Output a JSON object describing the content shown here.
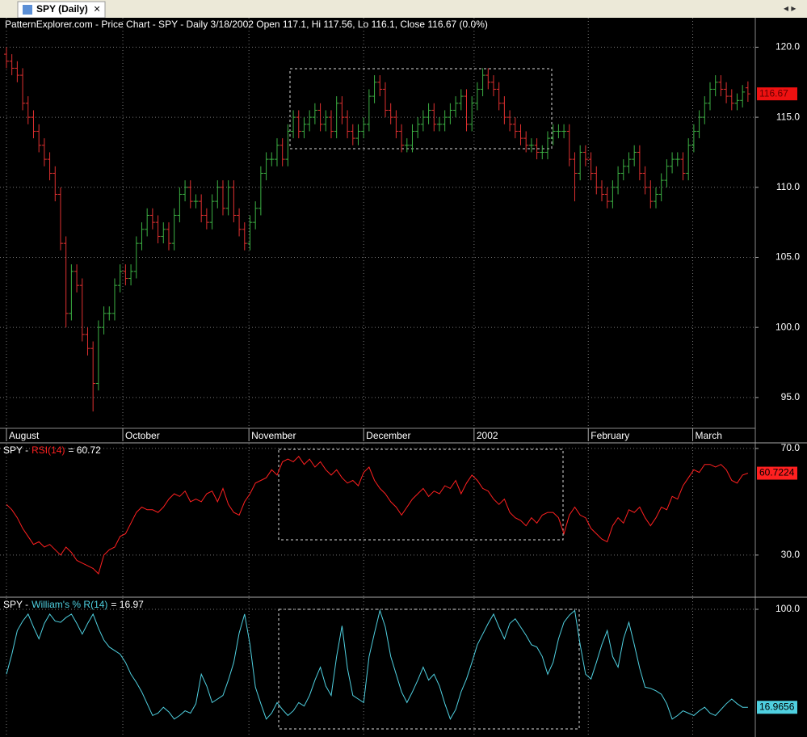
{
  "tab": {
    "title": "SPY (Daily)",
    "close": "×",
    "nav": "◂ ▸"
  },
  "chart_data": [
    {
      "type": "ohlc",
      "title": "PatternExplorer.com - Price Chart - SPY - Daily 3/18/2002 Open 117.1, Hi 117.56, Lo 116.1, Close 116.67 (0.0%)",
      "open": [
        119.5,
        119,
        118.5,
        118,
        116,
        115,
        114,
        113,
        112,
        111,
        109.5,
        106,
        101,
        104,
        103,
        99.5,
        98.5,
        96,
        100,
        101,
        101,
        103,
        104,
        103.5,
        104,
        106,
        107,
        108,
        107.5,
        106.5,
        107,
        106,
        108,
        109.5,
        110,
        109,
        109,
        108,
        107.5,
        109,
        110,
        108.5,
        110,
        108,
        107,
        106,
        107.5,
        108.5,
        111,
        112,
        112,
        113,
        112,
        114,
        115,
        114,
        114.5,
        115,
        115.5,
        114.5,
        115,
        114,
        116,
        115,
        114,
        113.5,
        114,
        114.5,
        116.5,
        117.5,
        117,
        115.5,
        115,
        114,
        113,
        113,
        114,
        114.5,
        115,
        115.5,
        114.5,
        114.5,
        115,
        115.5,
        116,
        116.5,
        114.5,
        116,
        117,
        118,
        117.5,
        117,
        116,
        115,
        114.5,
        114,
        113.5,
        113,
        113,
        112.5,
        112.5,
        113.5,
        114,
        114,
        114,
        112,
        111,
        112.5,
        112,
        111,
        110,
        109.5,
        109,
        110,
        111,
        111.5,
        112,
        112.5,
        111,
        110,
        109,
        109.5,
        110.5,
        111.5,
        112,
        112,
        111,
        113,
        114,
        115,
        116,
        117,
        117.5,
        117,
        116.5,
        116,
        116.2,
        117.1
      ],
      "high": [
        120,
        119.5,
        119,
        118.5,
        116.5,
        115.5,
        114.5,
        113.5,
        112.5,
        111.5,
        110,
        106.5,
        104.5,
        104.5,
        103.5,
        100,
        99,
        100.5,
        101.5,
        101.5,
        103.5,
        104.5,
        104.5,
        104.5,
        106.5,
        107.5,
        108.5,
        108.5,
        108,
        107.5,
        107.5,
        108.5,
        110,
        110.5,
        110.5,
        109.5,
        109.5,
        108.5,
        109.5,
        110.5,
        110.5,
        110.5,
        110.5,
        108.5,
        107.5,
        108,
        109,
        111.5,
        112.5,
        112.5,
        113.5,
        113.5,
        114.5,
        115.5,
        115.5,
        115,
        115.5,
        116,
        116,
        115.5,
        115.5,
        116.5,
        116.5,
        115.5,
        114.5,
        114.5,
        115,
        117,
        118,
        118,
        117.5,
        116,
        115.5,
        114.5,
        113.5,
        114.5,
        115,
        115.5,
        116,
        116,
        115,
        115.5,
        116,
        116.5,
        117,
        117,
        116.5,
        117.5,
        118.5,
        118.5,
        118,
        117.5,
        116.5,
        115.5,
        115,
        114.5,
        114,
        113.5,
        113.5,
        113,
        114,
        114.5,
        114.5,
        114.5,
        114.5,
        112.5,
        113,
        113,
        112.5,
        111.5,
        110.5,
        110,
        110.5,
        111.5,
        112,
        112.5,
        113,
        113,
        111.5,
        110.5,
        110,
        111,
        112,
        112.5,
        112.5,
        112.5,
        113.5,
        114.5,
        115.5,
        116.5,
        117.5,
        118,
        118,
        117.5,
        117,
        116.7,
        117.3,
        117.56
      ],
      "low": [
        118.5,
        118,
        117.5,
        115.5,
        114.5,
        113.5,
        112.5,
        111.5,
        110.5,
        109,
        105.5,
        100,
        100.5,
        102.5,
        99,
        98,
        94,
        95.5,
        99.5,
        100.5,
        100.5,
        102.5,
        103,
        103,
        103.5,
        105.5,
        106.5,
        107,
        106,
        106,
        105.5,
        105.5,
        107.5,
        109,
        108.5,
        108.5,
        107.5,
        107,
        107,
        108.5,
        108,
        108,
        107.5,
        106.5,
        105.5,
        105.5,
        107,
        108,
        110.5,
        111.5,
        111.5,
        111.5,
        111.5,
        113.5,
        113.5,
        113.5,
        114,
        114.5,
        114,
        114,
        113.5,
        113.5,
        114.5,
        113.5,
        113,
        113,
        113.5,
        114,
        116,
        116.5,
        115,
        114.5,
        113.5,
        112.5,
        112.5,
        112.5,
        113.5,
        114,
        114.5,
        114,
        114,
        114,
        114.5,
        115,
        115.5,
        114,
        114,
        115.5,
        116.5,
        117,
        116.5,
        115.5,
        114.5,
        114,
        113.5,
        113,
        112.5,
        112.5,
        112,
        112,
        112,
        113,
        113.5,
        113.5,
        111.5,
        109,
        110.5,
        111.5,
        110.5,
        109.5,
        109,
        108.5,
        108.5,
        109.5,
        110.5,
        111,
        111.5,
        110.5,
        109.5,
        108.5,
        108.5,
        109,
        110,
        111,
        111.5,
        110.5,
        110.5,
        112.5,
        113.5,
        114.5,
        115.5,
        116.5,
        116.5,
        116,
        115.5,
        115.5,
        115.7,
        116.1
      ],
      "close": [
        119,
        118.5,
        118,
        116,
        115,
        114,
        113,
        112,
        111,
        109.5,
        106,
        101,
        104,
        103,
        99.5,
        98.5,
        96,
        100,
        101,
        101,
        103,
        104,
        103.5,
        104,
        106,
        107,
        108,
        107.5,
        106.5,
        107,
        106,
        108,
        109.5,
        110,
        109,
        109,
        108,
        107.5,
        109,
        110,
        108.5,
        110,
        108,
        107,
        106,
        107.5,
        108.5,
        111,
        112,
        112,
        113,
        112,
        114,
        115,
        114,
        114.5,
        115,
        115.5,
        114.5,
        115,
        114,
        116,
        115,
        114,
        113.5,
        114,
        114.5,
        116.5,
        117.5,
        117,
        115.5,
        115,
        114,
        113,
        113,
        114,
        114.5,
        115,
        115.5,
        114.5,
        114.5,
        115,
        115.5,
        116,
        116.5,
        114.5,
        116,
        117,
        118,
        117.5,
        117,
        116,
        115,
        114.5,
        114,
        113.5,
        113,
        113,
        112.5,
        112.5,
        113.5,
        114,
        114,
        114,
        112,
        111,
        112.5,
        112,
        111,
        110,
        109.5,
        109,
        110,
        111,
        111.5,
        112,
        112.5,
        111,
        110,
        109,
        109.5,
        110.5,
        111.5,
        112,
        112,
        111,
        113,
        114,
        115,
        116,
        117,
        117.5,
        117,
        116.5,
        116,
        116.2,
        116.8,
        116.67
      ],
      "up_color": "#3cb043",
      "down_color": "#e03030",
      "last_color": "#ee1111",
      "xlim": [
        -1.19,
        138.36
      ],
      "ylim": [
        92.8,
        122.1
      ],
      "yticks": [
        {
          "value": 95,
          "label": "95.0"
        },
        {
          "value": 100,
          "label": "100.0"
        },
        {
          "value": 105,
          "label": "105.0"
        },
        {
          "value": 110,
          "label": "110.0"
        },
        {
          "value": 115,
          "label": "115.0"
        },
        {
          "value": 120,
          "label": "120.0"
        }
      ],
      "xticks": [
        {
          "value": 0,
          "label": "August"
        },
        {
          "value": 21.5,
          "label": "October"
        },
        {
          "value": 44.8,
          "label": "November"
        },
        {
          "value": 66,
          "label": "December"
        },
        {
          "value": 86.4,
          "label": "2002"
        },
        {
          "value": 107.5,
          "label": "February"
        },
        {
          "value": 126.8,
          "label": "March"
        }
      ],
      "grid": true
    },
    {
      "type": "line",
      "prefix": "SPY -",
      "current_text": "= 60.72",
      "series": [
        {
          "name": "RSI(14)",
          "color": "#ff2020",
          "values": [
            49,
            47,
            44,
            40,
            37,
            34,
            35,
            33,
            34,
            32,
            30,
            33,
            31,
            28,
            27,
            26,
            25,
            23,
            30,
            32,
            33,
            37,
            38,
            42,
            46,
            48,
            47,
            47,
            46,
            48,
            51,
            53,
            52,
            54,
            50,
            51,
            50,
            53,
            54,
            50,
            55,
            49,
            46,
            45,
            50,
            53,
            57,
            58,
            59,
            62,
            60,
            65,
            66,
            65,
            67,
            64,
            66,
            63,
            65,
            62,
            60,
            62,
            59,
            57,
            58,
            56,
            61,
            63,
            58,
            55,
            53,
            50,
            48,
            45,
            48,
            51,
            53,
            55,
            52,
            54,
            53,
            56,
            55,
            58,
            53,
            57,
            60,
            58,
            55,
            54,
            51,
            49,
            51,
            46,
            44,
            43,
            41,
            44,
            42,
            45,
            46,
            46,
            44,
            38,
            45,
            48,
            45,
            44,
            40,
            38,
            36,
            35,
            41,
            44,
            42,
            47,
            46,
            48,
            44,
            41,
            44,
            48,
            47,
            52,
            51,
            56,
            59,
            62,
            61,
            64,
            64,
            63,
            64,
            62,
            58,
            57,
            60,
            60.7224
          ]
        }
      ],
      "xlim": [
        -1.19,
        138.36
      ],
      "ylim": [
        14.5,
        71.8
      ],
      "yticks": [
        {
          "value": 30,
          "label": "30.0"
        },
        {
          "value": 70,
          "label": "70.0"
        }
      ],
      "grid": true
    },
    {
      "type": "line",
      "prefix": "SPY -",
      "current_text": "= 16.97",
      "series": [
        {
          "name": "William's % R(14)",
          "color": "#4fd0e0",
          "values": [
            45,
            62,
            82,
            90,
            96,
            85,
            75,
            88,
            96,
            90,
            89,
            93,
            96,
            88,
            79,
            88,
            96,
            84,
            74,
            68,
            65,
            62,
            55,
            45,
            38,
            30,
            20,
            10,
            12,
            17,
            13,
            7,
            10,
            14,
            12,
            20,
            45,
            35,
            21,
            24,
            27,
            40,
            55,
            80,
            96,
            70,
            34,
            20,
            7,
            12,
            21,
            15,
            10,
            14,
            21,
            18,
            27,
            40,
            51,
            35,
            27,
            60,
            86,
            50,
            27,
            24,
            21,
            60,
            80,
            99,
            85,
            60,
            45,
            30,
            21,
            30,
            40,
            51,
            40,
            45,
            35,
            20,
            7,
            15,
            30,
            41,
            55,
            70,
            79,
            88,
            96,
            85,
            75,
            88,
            92,
            85,
            78,
            70,
            68,
            60,
            45,
            55,
            75,
            89,
            95,
            99,
            70,
            45,
            41,
            55,
            70,
            82,
            60,
            51,
            75,
            89,
            70,
            50,
            34,
            33,
            31,
            28,
            20,
            7,
            10,
            14,
            12,
            10,
            14,
            17,
            12,
            10,
            15,
            20,
            24,
            20,
            17,
            16.9656
          ]
        }
      ],
      "xlim": [
        -1.19,
        138.36
      ],
      "ylim": [
        -8.2,
        109.6
      ],
      "yticks": [
        {
          "value": 100,
          "label": "100.0"
        }
      ],
      "grid": true
    }
  ]
}
